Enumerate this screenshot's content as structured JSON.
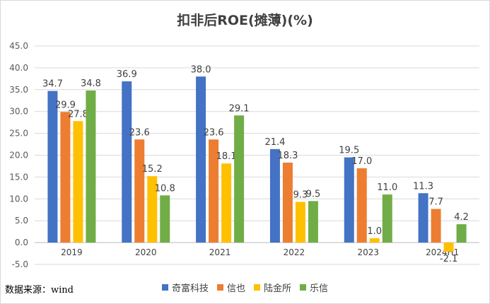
{
  "chart_data": {
    "type": "bar",
    "title": "扣非后ROE(摊薄)(%)",
    "categories": [
      "2019",
      "2020",
      "2021",
      "2022",
      "2023",
      "2024H1"
    ],
    "series": [
      {
        "name": "奇富科技",
        "color": "#4472C4",
        "values": [
          34.7,
          36.9,
          38.0,
          21.4,
          19.5,
          11.3
        ]
      },
      {
        "name": "信也",
        "color": "#ED7D31",
        "values": [
          29.9,
          23.6,
          23.6,
          18.3,
          17.0,
          7.7
        ]
      },
      {
        "name": "陆金所",
        "color": "#FFC000",
        "values": [
          27.8,
          15.2,
          18.1,
          9.3,
          1.0,
          -2.1
        ]
      },
      {
        "name": "乐信",
        "color": "#70AD47",
        "values": [
          34.8,
          10.8,
          29.1,
          9.5,
          11.0,
          4.2
        ]
      }
    ],
    "ylim": [
      -5,
      45
    ],
    "yticks": [
      "-5.0",
      "0.0",
      "5.0",
      "10.0",
      "15.0",
      "20.0",
      "25.0",
      "30.0",
      "35.0",
      "40.0",
      "45.0"
    ],
    "grid": true,
    "legend_position": "bottom"
  },
  "source_note": "数据来源：wind"
}
